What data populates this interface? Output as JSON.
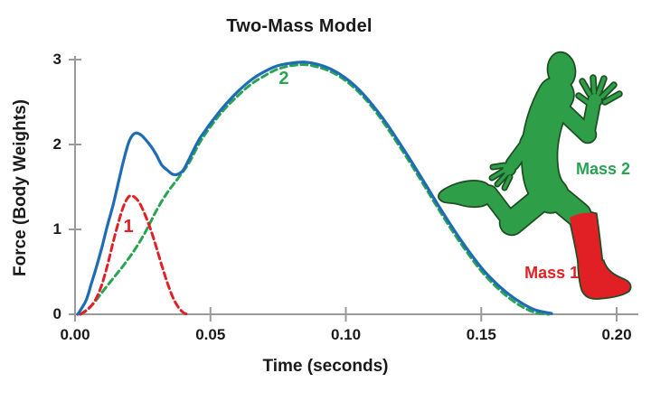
{
  "figure": {
    "title": "Two-Mass Model",
    "background_color": "#ffffff",
    "text_color": "#1a1a1a",
    "axis_color": "#9a9a9a"
  },
  "chart_data": {
    "type": "line",
    "title": "Two-Mass Model",
    "xlabel": "Time (seconds)",
    "ylabel": "Force (Body Weights)",
    "xlim": [
      0,
      0.2
    ],
    "ylim": [
      0,
      3
    ],
    "grid": false,
    "legend_position": "none (curves labeled inline with colored text)",
    "x_ticks": [
      {
        "value": 0.0,
        "label": "0.00"
      },
      {
        "value": 0.05,
        "label": "0.05"
      },
      {
        "value": 0.1,
        "label": "0.10"
      },
      {
        "value": 0.15,
        "label": "0.15"
      },
      {
        "value": 0.2,
        "label": "0.20"
      }
    ],
    "y_ticks": [
      {
        "value": 0,
        "label": "0"
      },
      {
        "value": 1,
        "label": "1"
      },
      {
        "value": 2,
        "label": "2"
      },
      {
        "value": 3,
        "label": "3"
      }
    ],
    "series": [
      {
        "name": "mass2-force",
        "inline_label": "2",
        "color": "#27a351",
        "dash": true,
        "width": 3,
        "points": [
          [
            0.002,
            0
          ],
          [
            0.006,
            0.1
          ],
          [
            0.01,
            0.26
          ],
          [
            0.014,
            0.42
          ],
          [
            0.018,
            0.58
          ],
          [
            0.022,
            0.76
          ],
          [
            0.026,
            0.97
          ],
          [
            0.03,
            1.22
          ],
          [
            0.034,
            1.43
          ],
          [
            0.038,
            1.6
          ],
          [
            0.042,
            1.78
          ],
          [
            0.046,
            2.02
          ],
          [
            0.05,
            2.21
          ],
          [
            0.055,
            2.41
          ],
          [
            0.06,
            2.57
          ],
          [
            0.065,
            2.71
          ],
          [
            0.07,
            2.81
          ],
          [
            0.075,
            2.89
          ],
          [
            0.08,
            2.93
          ],
          [
            0.085,
            2.94
          ],
          [
            0.09,
            2.91
          ],
          [
            0.095,
            2.85
          ],
          [
            0.1,
            2.75
          ],
          [
            0.105,
            2.61
          ],
          [
            0.11,
            2.43
          ],
          [
            0.115,
            2.21
          ],
          [
            0.12,
            1.97
          ],
          [
            0.125,
            1.72
          ],
          [
            0.13,
            1.46
          ],
          [
            0.135,
            1.2
          ],
          [
            0.14,
            0.95
          ],
          [
            0.145,
            0.72
          ],
          [
            0.15,
            0.51
          ],
          [
            0.155,
            0.34
          ],
          [
            0.16,
            0.2
          ],
          [
            0.165,
            0.09
          ],
          [
            0.17,
            0.02
          ],
          [
            0.175,
            0
          ]
        ]
      },
      {
        "name": "mass1-force",
        "inline_label": "1",
        "color": "#e02025",
        "dash": true,
        "width": 3,
        "points": [
          [
            0.002,
            0
          ],
          [
            0.004,
            0.04
          ],
          [
            0.006,
            0.1
          ],
          [
            0.008,
            0.2
          ],
          [
            0.01,
            0.36
          ],
          [
            0.012,
            0.58
          ],
          [
            0.014,
            0.84
          ],
          [
            0.016,
            1.08
          ],
          [
            0.018,
            1.28
          ],
          [
            0.02,
            1.39
          ],
          [
            0.022,
            1.38
          ],
          [
            0.024,
            1.3
          ],
          [
            0.026,
            1.16
          ],
          [
            0.028,
            0.99
          ],
          [
            0.03,
            0.79
          ],
          [
            0.032,
            0.58
          ],
          [
            0.034,
            0.38
          ],
          [
            0.036,
            0.21
          ],
          [
            0.038,
            0.09
          ],
          [
            0.04,
            0.02
          ],
          [
            0.0415,
            0
          ]
        ]
      },
      {
        "name": "total-force",
        "inline_label": "",
        "color": "#1e6cb5",
        "dash": false,
        "width": 3.2,
        "points": [
          [
            0.001,
            0
          ],
          [
            0.004,
            0.16
          ],
          [
            0.006,
            0.36
          ],
          [
            0.008,
            0.57
          ],
          [
            0.01,
            0.8
          ],
          [
            0.012,
            1.05
          ],
          [
            0.014,
            1.28
          ],
          [
            0.016,
            1.55
          ],
          [
            0.018,
            1.82
          ],
          [
            0.02,
            2.04
          ],
          [
            0.022,
            2.13
          ],
          [
            0.024,
            2.12
          ],
          [
            0.026,
            2.06
          ],
          [
            0.028,
            1.98
          ],
          [
            0.03,
            1.88
          ],
          [
            0.032,
            1.76
          ],
          [
            0.034,
            1.7
          ],
          [
            0.036,
            1.65
          ],
          [
            0.038,
            1.65
          ],
          [
            0.04,
            1.7
          ],
          [
            0.042,
            1.82
          ],
          [
            0.044,
            1.95
          ],
          [
            0.046,
            2.07
          ],
          [
            0.048,
            2.16
          ],
          [
            0.05,
            2.25
          ],
          [
            0.055,
            2.45
          ],
          [
            0.06,
            2.62
          ],
          [
            0.065,
            2.76
          ],
          [
            0.07,
            2.86
          ],
          [
            0.075,
            2.93
          ],
          [
            0.08,
            2.96
          ],
          [
            0.085,
            2.97
          ],
          [
            0.09,
            2.94
          ],
          [
            0.095,
            2.88
          ],
          [
            0.1,
            2.78
          ],
          [
            0.105,
            2.64
          ],
          [
            0.11,
            2.46
          ],
          [
            0.115,
            2.25
          ],
          [
            0.12,
            2.01
          ],
          [
            0.125,
            1.76
          ],
          [
            0.13,
            1.5
          ],
          [
            0.135,
            1.24
          ],
          [
            0.14,
            0.99
          ],
          [
            0.145,
            0.76
          ],
          [
            0.15,
            0.55
          ],
          [
            0.155,
            0.38
          ],
          [
            0.16,
            0.24
          ],
          [
            0.165,
            0.13
          ],
          [
            0.17,
            0.05
          ],
          [
            0.176,
            0.01
          ]
        ]
      }
    ],
    "annotations": [
      {
        "text": "1",
        "t": 0.0197,
        "force": 1.02,
        "size": 20,
        "color": "#e02025"
      },
      {
        "text": "2",
        "t": 0.0771,
        "force": 2.77,
        "size": 20,
        "color": "#27a351"
      },
      {
        "text": "Mass 1",
        "t": 0.176,
        "force": 0.47,
        "size": 18,
        "color": "#e02025"
      },
      {
        "text": "Mass 2",
        "t": 0.195,
        "force": 1.69,
        "size": 18,
        "color": "#27a351"
      }
    ]
  },
  "illustration": {
    "description": "running person silhouette, body green, leading lower leg and foot red",
    "body_color": "#2f9e48",
    "lower_leg_color": "#e02025",
    "outline_color": "#1c4f22"
  }
}
